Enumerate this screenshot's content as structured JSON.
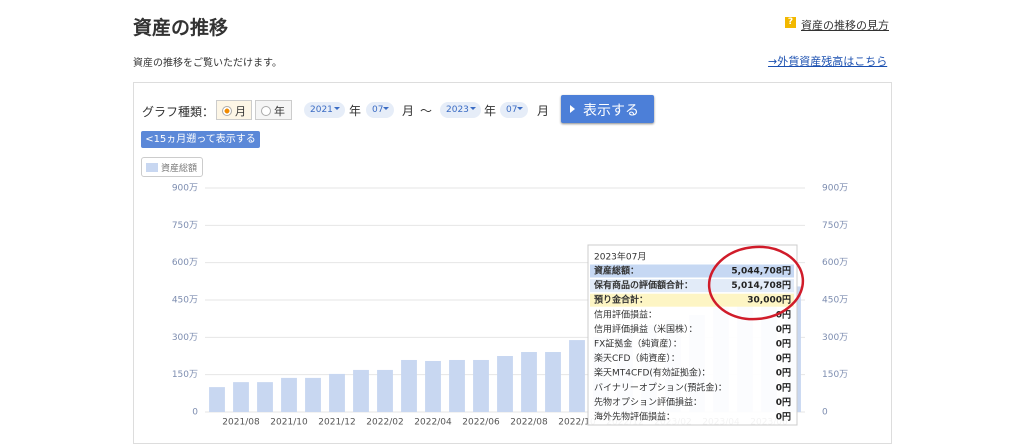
{
  "header": {
    "title": "資産の推移",
    "subtitle": "資産の推移をご覧いただけます。",
    "help_icon": "?",
    "help_link": "資産の推移の見方",
    "fx_link": "→外貨資産残高はこちら"
  },
  "controls": {
    "label": "グラフ種類：",
    "radio_month": "月",
    "radio_year": "年",
    "from_year": "2021",
    "from_month": "07",
    "year_unit": "年",
    "month_unit": "月",
    "tilde": "〜",
    "to_year": "2023",
    "to_month": "07",
    "show_button": "表示する",
    "back_button": "<15ヵ月遡って表示する"
  },
  "chart_data": {
    "type": "bar",
    "categories": [
      null,
      "2021/08",
      null,
      "2021/10",
      null,
      "2021/12",
      null,
      "2022/02",
      null,
      "2022/04",
      null,
      "2022/06",
      null,
      "2022/08",
      null,
      "2022/10",
      null,
      "2022/12",
      null,
      "2023/02",
      null,
      "2023/04",
      null,
      "2023/06",
      null
    ],
    "series": [
      {
        "name": "資産総額",
        "color": "#c8d7f1",
        "values": [
          100,
          120,
          120,
          137,
          137,
          153,
          169,
          169,
          209,
          205,
          209,
          209,
          225,
          241,
          241,
          289,
          300,
          320,
          350,
          370,
          390,
          420,
          450,
          480,
          504.4708
        ]
      }
    ],
    "ylim": [
      0,
      900
    ],
    "yticks": [
      0,
      {
        "value": 150,
        "label": "150万"
      },
      {
        "value": 300,
        "label": "300万"
      },
      {
        "value": 450,
        "label": "450万"
      },
      {
        "value": 600,
        "label": "600万"
      },
      {
        "value": 750,
        "label": "750万"
      },
      {
        "value": 900,
        "label": "900万"
      }
    ],
    "grid": true,
    "tooltip": {
      "title": "2023年07月",
      "rows": [
        {
          "label": "資産総額：",
          "value": "5,044,708円"
        },
        {
          "label": "保有商品の評価額合計：",
          "value": "5,014,708円"
        },
        {
          "label": "預り金合計：",
          "value": "30,000円"
        },
        {
          "label": "信用評価損益：",
          "value": "0円"
        },
        {
          "label": "信用評価損益（米国株）：",
          "value": "0円"
        },
        {
          "label": "FX証拠金（純資産）：",
          "value": "0円"
        },
        {
          "label": "楽天CFD（純資産）：",
          "value": "0円"
        },
        {
          "label": "楽天MT4CFD(有効証拠金)：",
          "value": "0円"
        },
        {
          "label": "バイナリーオプション(預託金)：",
          "value": "0円"
        },
        {
          "label": "先物オプション評価損益：",
          "value": "0円"
        },
        {
          "label": "海外先物評価損益：",
          "value": "0円"
        }
      ]
    }
  }
}
